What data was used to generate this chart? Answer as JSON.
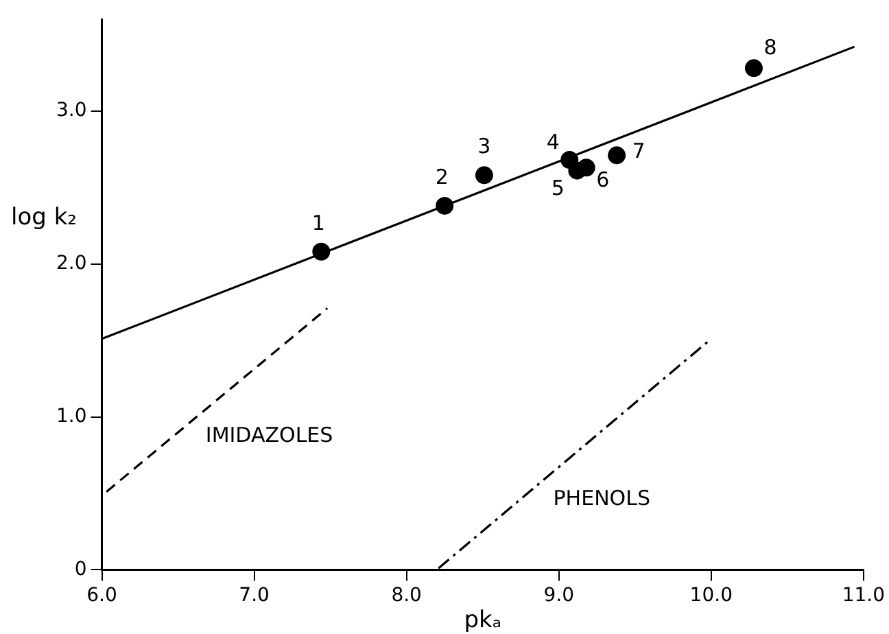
{
  "chart_data": {
    "type": "scatter",
    "xlabel": "pkₐ",
    "ylabel": "log k₂",
    "xlim": [
      6,
      11
    ],
    "ylim": [
      0,
      3.6
    ],
    "xticks": [
      {
        "value": 6,
        "label": "6.0"
      },
      {
        "value": 7,
        "label": "7.0"
      },
      {
        "value": 8,
        "label": "8.0"
      },
      {
        "value": 9,
        "label": "9.0"
      },
      {
        "value": 10,
        "label": "10.0"
      },
      {
        "value": 11,
        "label": "11.0"
      }
    ],
    "yticks": [
      0,
      {
        "value": 1,
        "label": "1.0"
      },
      {
        "value": 2,
        "label": "2.0"
      },
      {
        "value": 3,
        "label": "3.0"
      }
    ],
    "grid": false,
    "legend": false,
    "series": [
      {
        "marker": "circle",
        "color": "#000000",
        "x": [
          7.44,
          8.25,
          8.51,
          9.07,
          9.12,
          9.18,
          9.38,
          10.28
        ],
        "values": [
          2.08,
          2.38,
          2.58,
          2.68,
          2.61,
          2.63,
          2.71,
          3.28
        ]
      },
      {
        "type": "line",
        "color": "#000000",
        "line_style": "solid",
        "x": [
          6,
          10.94
        ],
        "values": [
          1.51,
          3.42
        ]
      },
      {
        "type": "line",
        "name": "IMIDAZOLES",
        "color": "#000000",
        "line_style": "dashed",
        "x": [
          6.03,
          7.48
        ],
        "values": [
          0.51,
          1.71
        ]
      },
      {
        "type": "line",
        "name": "PHENOLS",
        "color": "#000000",
        "line_style": "dashdot",
        "x": [
          8.21,
          10.0
        ],
        "values": [
          0.01,
          1.51
        ]
      }
    ],
    "annotations": [
      {
        "text": "1",
        "x": 7.44,
        "y": 2.08
      },
      {
        "text": "2",
        "x": 8.25,
        "y": 2.38
      },
      {
        "text": "3",
        "x": 8.51,
        "y": 2.58
      },
      {
        "text": "4",
        "x": 9.07,
        "y": 2.68
      },
      {
        "text": "5",
        "x": 9.12,
        "y": 2.61
      },
      {
        "text": "6",
        "x": 9.18,
        "y": 2.63
      },
      {
        "text": "7",
        "x": 9.38,
        "y": 2.71
      },
      {
        "text": "8",
        "x": 10.28,
        "y": 3.28
      }
    ]
  }
}
